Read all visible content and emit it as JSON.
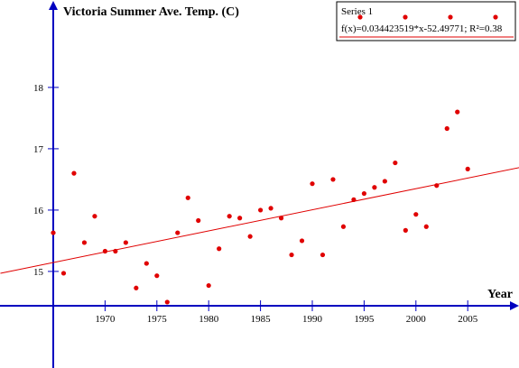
{
  "chart_data": {
    "type": "scatter",
    "title": "Victoria Summer Ave. Temp. (C)",
    "xlabel": "Year",
    "ylabel": "",
    "xlim": [
      1965,
      2010
    ],
    "ylim": [
      13.2,
      19.0
    ],
    "xticks": [
      1970,
      1975,
      1980,
      1985,
      1990,
      1995,
      2000,
      2005
    ],
    "yticks": [
      15,
      16,
      17,
      18
    ],
    "legend": {
      "series_label": "Series 1",
      "fit_label": "f(x)=0.034423519*x-52.49771; R²=0.38",
      "placement": "top-right"
    },
    "series": [
      {
        "name": "Series 1",
        "color": "#e00000",
        "x": [
          1965,
          1966,
          1967,
          1968,
          1969,
          1970,
          1971,
          1972,
          1973,
          1974,
          1975,
          1976,
          1977,
          1978,
          1979,
          1980,
          1981,
          1982,
          1983,
          1984,
          1985,
          1986,
          1987,
          1988,
          1989,
          1990,
          1991,
          1992,
          1993,
          1994,
          1995,
          1996,
          1997,
          1998,
          1999,
          2000,
          2001,
          2002,
          2003,
          2004,
          2005
        ],
        "y": [
          15.63,
          14.97,
          16.6,
          15.47,
          15.9,
          15.33,
          15.33,
          15.47,
          14.73,
          15.13,
          14.93,
          14.5,
          15.63,
          16.2,
          15.83,
          14.77,
          15.37,
          15.9,
          15.87,
          15.57,
          16.0,
          16.03,
          15.87,
          15.27,
          15.5,
          16.43,
          15.27,
          16.5,
          15.73,
          16.17,
          16.27,
          16.37,
          16.47,
          16.77,
          15.67,
          15.93,
          15.73,
          16.4,
          17.33,
          17.6,
          16.67
        ]
      }
    ],
    "fit_line": {
      "color": "#e00000",
      "slope": 0.034423519,
      "intercept": -52.49771
    },
    "axis_color": "#0000c0",
    "grid": false
  }
}
